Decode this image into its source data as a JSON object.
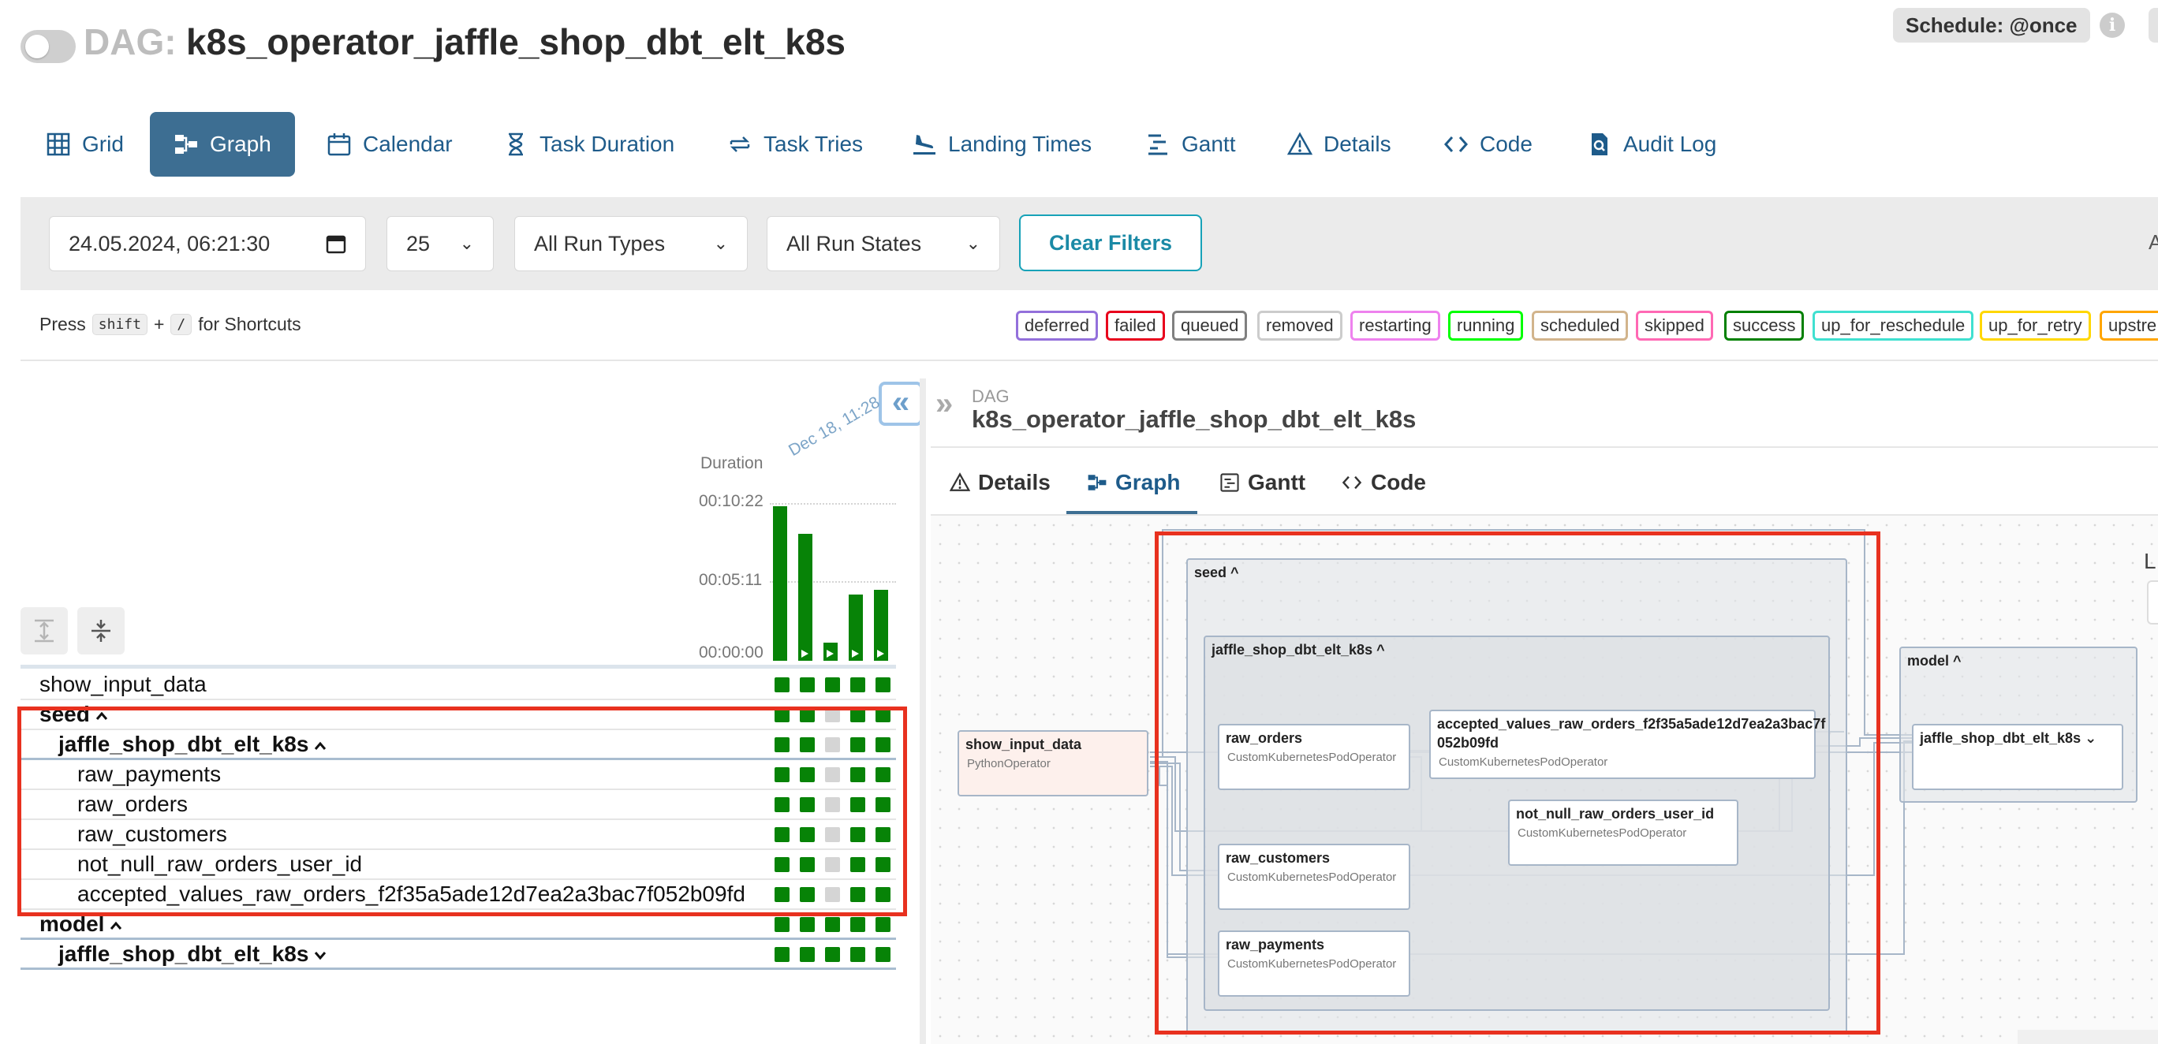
{
  "header": {
    "dag_prefix": "DAG:",
    "dag_id": "k8s_operator_jaffle_shop_dbt_elt_k8s",
    "schedule": "Schedule: @once",
    "info_icon": "i"
  },
  "tabs": [
    {
      "label": "Grid",
      "icon": "grid-icon"
    },
    {
      "label": "Graph",
      "icon": "graph-icon",
      "active": true
    },
    {
      "label": "Calendar",
      "icon": "calendar-icon"
    },
    {
      "label": "Task Duration",
      "icon": "hourglass-icon"
    },
    {
      "label": "Task Tries",
      "icon": "retry-icon"
    },
    {
      "label": "Landing Times",
      "icon": "plane-landing-icon"
    },
    {
      "label": "Gantt",
      "icon": "gantt-icon"
    },
    {
      "label": "Details",
      "icon": "warning-icon"
    },
    {
      "label": "Code",
      "icon": "code-icon"
    },
    {
      "label": "Audit Log",
      "icon": "audit-doc-icon"
    }
  ],
  "filters": {
    "datetime": "24.05.2024, 06:21:30",
    "num_runs": "25",
    "run_type": "All Run Types",
    "run_state": "All Run States",
    "clear_label": "Clear Filters",
    "right_cut": "A"
  },
  "shortcuts": {
    "press": "Press",
    "key1": "shift",
    "plus": "+",
    "key2": "/",
    "suffix": "for Shortcuts"
  },
  "legend": [
    {
      "label": "deferred",
      "color": "#9370db"
    },
    {
      "label": "failed",
      "color": "#e8001c"
    },
    {
      "label": "queued",
      "color": "#808080"
    },
    {
      "label": "removed",
      "color": "#cccccc"
    },
    {
      "label": "restarting",
      "color": "#ee82ee"
    },
    {
      "label": "running",
      "color": "#00ff00"
    },
    {
      "label": "scheduled",
      "color": "#d2b48c"
    },
    {
      "label": "skipped",
      "color": "#ff69b4"
    },
    {
      "label": "success",
      "color": "#008000"
    },
    {
      "label": "up_for_reschedule",
      "color": "#40e0d0"
    },
    {
      "label": "up_for_retry",
      "color": "#ffd700"
    },
    {
      "label": "upstre",
      "color": "#ffa500"
    }
  ],
  "grid": {
    "duration_label": "Duration",
    "run_date": "Dec 18, 11:28",
    "ticks": [
      "00:10:22",
      "00:05:11",
      "00:00:00"
    ],
    "runs": [
      {
        "duration": "00:10:11",
        "play": false
      },
      {
        "duration": "00:08:20",
        "play": true
      },
      {
        "duration": "00:01:10",
        "play": true
      },
      {
        "duration": "00:04:20",
        "play": true
      },
      {
        "duration": "00:04:40",
        "play": true
      }
    ],
    "rows": [
      {
        "name": "show_input_data",
        "indent": 0,
        "bold": false,
        "chevron": "",
        "states": [
          "success",
          "success",
          "success",
          "success",
          "success"
        ]
      },
      {
        "name": "seed",
        "indent": 0,
        "bold": true,
        "chevron": "^",
        "states": [
          "success",
          "success",
          "none",
          "success",
          "success"
        ]
      },
      {
        "name": "jaffle_shop_dbt_elt_k8s",
        "indent": 1,
        "bold": true,
        "chevron": "^",
        "states": [
          "success",
          "success",
          "none",
          "success",
          "success"
        ]
      },
      {
        "name": "raw_payments",
        "indent": 2,
        "bold": false,
        "chevron": "",
        "states": [
          "success",
          "success",
          "none",
          "success",
          "success"
        ]
      },
      {
        "name": "raw_orders",
        "indent": 2,
        "bold": false,
        "chevron": "",
        "states": [
          "success",
          "success",
          "none",
          "success",
          "success"
        ]
      },
      {
        "name": "raw_customers",
        "indent": 2,
        "bold": false,
        "chevron": "",
        "states": [
          "success",
          "success",
          "none",
          "success",
          "success"
        ]
      },
      {
        "name": "not_null_raw_orders_user_id",
        "indent": 2,
        "bold": false,
        "chevron": "",
        "states": [
          "success",
          "success",
          "none",
          "success",
          "success"
        ]
      },
      {
        "name": "accepted_values_raw_orders_f2f35a5ade12d7ea2a3bac7f052b09fd",
        "indent": 2,
        "bold": false,
        "chevron": "",
        "states": [
          "success",
          "success",
          "none",
          "success",
          "success"
        ]
      },
      {
        "name": "model",
        "indent": 0,
        "bold": true,
        "chevron": "^",
        "states": [
          "success",
          "success",
          "success",
          "success",
          "success"
        ]
      },
      {
        "name": "jaffle_shop_dbt_elt_k8s",
        "indent": 1,
        "bold": true,
        "chevron": "v",
        "states": [
          "success",
          "success",
          "success",
          "success",
          "success"
        ]
      }
    ]
  },
  "panel": {
    "dag_label": "DAG",
    "dag_id": "k8s_operator_jaffle_shop_dbt_elt_k8s",
    "tabs": [
      {
        "label": "Details",
        "icon": "warning-icon"
      },
      {
        "label": "Graph",
        "icon": "graph-icon",
        "active": true
      },
      {
        "label": "Gantt",
        "icon": "gantt-icon"
      },
      {
        "label": "Code",
        "icon": "code-icon"
      }
    ],
    "right_letter": "L"
  },
  "graph": {
    "groups": {
      "seed": "seed ^",
      "seed_inner": "jaffle_shop_dbt_elt_k8s ^",
      "model": "model ^"
    },
    "nodes": {
      "show_input_data": {
        "title": "show_input_data",
        "op": "PythonOperator"
      },
      "raw_orders": {
        "title": "raw_orders",
        "op": "CustomKubernetesPodOperator"
      },
      "accepted_values": {
        "title": "accepted_values_raw_orders_f2f35a5ade12d7ea2a3bac7f",
        "title2": "052b09fd",
        "op": "CustomKubernetesPodOperator"
      },
      "not_null": {
        "title": "not_null_raw_orders_user_id",
        "op": "CustomKubernetesPodOperator"
      },
      "raw_customers": {
        "title": "raw_customers",
        "op": "CustomKubernetesPodOperator"
      },
      "raw_payments": {
        "title": "raw_payments",
        "op": "CustomKubernetesPodOperator"
      },
      "model_inner": {
        "title": "jaffle_shop_dbt_elt_k8s ⌄"
      }
    }
  },
  "colors": {
    "success": "#078307",
    "none": "#d5d5d5",
    "accent": "#3d6e92",
    "highlight": "#e8311f"
  }
}
